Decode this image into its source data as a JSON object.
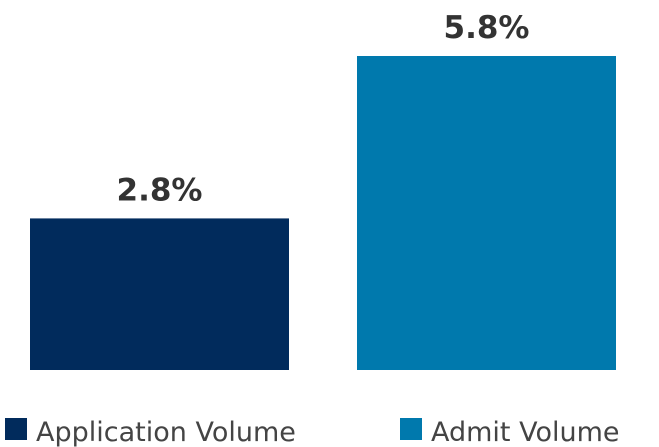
{
  "chart_data": {
    "type": "bar",
    "series": [
      {
        "name": "Application Volume",
        "color": "#012b5c",
        "values": [
          2.8
        ],
        "value_labels": [
          "2.8%"
        ]
      },
      {
        "name": "Admit Volume",
        "color": "#0079ad",
        "values": [
          5.8
        ],
        "value_labels": [
          "5.8%"
        ]
      }
    ]
  }
}
